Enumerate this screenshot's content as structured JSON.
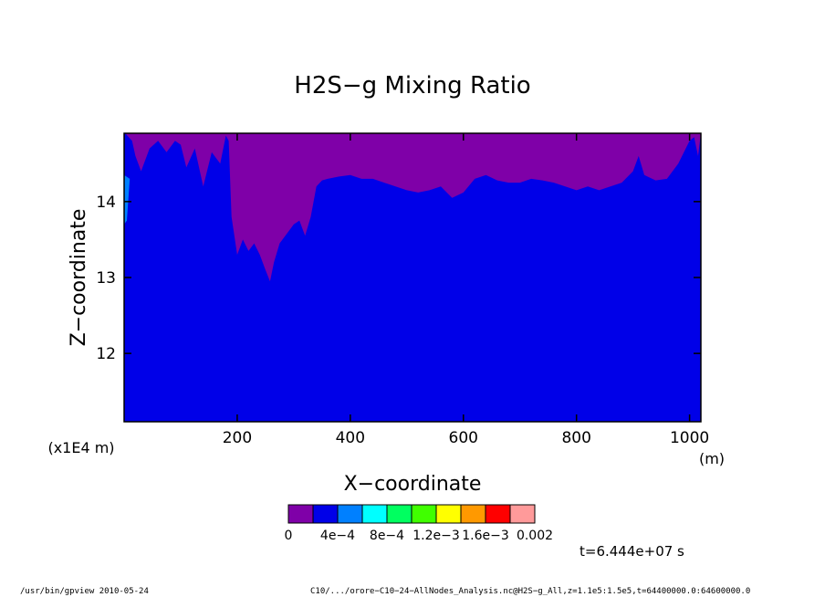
{
  "chart_data": {
    "type": "heatmap",
    "title": "H2S−g Mixing Ratio",
    "xlabel": "X−coordinate",
    "ylabel": "Z−coordinate",
    "x_unit_label": "(m)",
    "y_scale_label": "(x1E4 m)",
    "xlim": [
      0,
      1020
    ],
    "ylim": [
      11.1,
      14.9
    ],
    "x_ticks": [
      200,
      400,
      600,
      800,
      1000
    ],
    "x_tick_labels": [
      "200",
      "400",
      "600",
      "800",
      "1000"
    ],
    "y_ticks": [
      12,
      13,
      14
    ],
    "y_tick_labels": [
      "12",
      "13",
      "14"
    ],
    "grid": false,
    "colorbar": {
      "levels": [
        0,
        0.0002,
        0.0004,
        0.0006,
        0.0008,
        0.001,
        0.0012,
        0.0014,
        0.0016,
        0.0018,
        0.002
      ],
      "colors": [
        "#7f00a8",
        "#0000e8",
        "#0080ff",
        "#00ffff",
        "#00ff60",
        "#40ff00",
        "#ffff00",
        "#ff9900",
        "#ff0000",
        "#ff9a9a"
      ],
      "tick_labels": [
        "0",
        "4e−4",
        "8e−4",
        "1.2e−3",
        "1.6e−3",
        "0.002"
      ]
    },
    "boundary_note": "Boundary between high-value region (purple, top) and background (blue), given as z (x1E4 m) at each x (m).",
    "purple_region_lower_boundary": {
      "x": [
        2,
        8,
        14,
        20,
        30,
        45,
        60,
        75,
        90,
        100,
        110,
        125,
        140,
        155,
        170,
        180,
        185,
        190,
        200,
        210,
        220,
        230,
        240,
        250,
        258,
        265,
        275,
        290,
        300,
        310,
        320,
        330,
        340,
        350,
        360,
        380,
        400,
        420,
        440,
        460,
        480,
        500,
        520,
        540,
        560,
        580,
        600,
        620,
        640,
        660,
        680,
        700,
        720,
        740,
        760,
        780,
        800,
        820,
        840,
        860,
        880,
        900,
        910,
        920,
        940,
        960,
        980,
        990,
        1000,
        1008,
        1015,
        1020
      ],
      "z": [
        14.9,
        14.85,
        14.8,
        14.6,
        14.4,
        14.7,
        14.8,
        14.65,
        14.8,
        14.75,
        14.45,
        14.7,
        14.2,
        14.65,
        14.5,
        14.87,
        14.8,
        13.8,
        13.3,
        13.5,
        13.35,
        13.45,
        13.3,
        13.1,
        12.95,
        13.2,
        13.45,
        13.6,
        13.7,
        13.75,
        13.55,
        13.8,
        14.2,
        14.28,
        14.3,
        14.33,
        14.35,
        14.3,
        14.3,
        14.25,
        14.2,
        14.15,
        14.12,
        14.15,
        14.2,
        14.05,
        14.12,
        14.3,
        14.35,
        14.28,
        14.25,
        14.25,
        14.3,
        14.28,
        14.25,
        14.2,
        14.15,
        14.2,
        14.15,
        14.2,
        14.25,
        14.4,
        14.6,
        14.35,
        14.28,
        14.3,
        14.5,
        14.65,
        14.8,
        14.85,
        14.6,
        14.9
      ]
    },
    "annotations": [
      "t=6.444e+07 s"
    ]
  },
  "footer": {
    "left": "/usr/bin/gpview   2010-05-24",
    "right": "C10/.../orore−C10−24−AllNodes_Analysis.nc@H2S−g_All,z=1.1e5:1.5e5,t=64400000.0:64600000.0"
  },
  "colors": {
    "background": "#ffffff",
    "field_base": "#0000e8",
    "field_high": "#7f00a8",
    "edge_accent": "#0080ff"
  }
}
